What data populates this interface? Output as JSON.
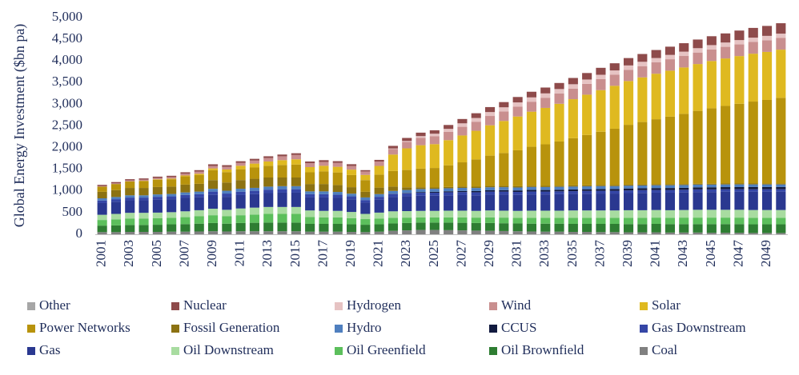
{
  "chart_data": {
    "type": "stacked_bar",
    "y_label": "Global Energy Investment ($bn pa)",
    "categories": [
      "2001",
      null,
      "2003",
      null,
      "2005",
      null,
      "2007",
      null,
      "2009",
      null,
      "2011",
      null,
      "2013",
      null,
      "2015",
      null,
      "2017",
      null,
      "2019",
      null,
      "2021",
      null,
      "2023",
      null,
      "2025",
      null,
      "2027",
      null,
      "2029",
      null,
      "2031",
      null,
      "2033",
      null,
      "2035",
      null,
      "2037",
      null,
      "2039",
      null,
      "2041",
      null,
      "2043",
      null,
      "2045",
      null,
      "2047",
      null,
      "2049",
      null
    ],
    "ylim": [
      0,
      5000
    ],
    "yticks": [
      0,
      500,
      {
        "value": 1000,
        "label": "1,000"
      },
      {
        "value": 1500,
        "label": "1,500"
      },
      {
        "value": 2000,
        "label": "2,000"
      },
      {
        "value": 2500,
        "label": "2,500"
      },
      {
        "value": 3000,
        "label": "3,000"
      },
      {
        "value": 3500,
        "label": "3,500"
      },
      {
        "value": 4000,
        "label": "4,000"
      },
      {
        "value": 4500,
        "label": "4,500"
      },
      {
        "value": 5000,
        "label": "5,000"
      }
    ],
    "grid": false,
    "legend_position": "bottom",
    "series": [
      {
        "name": "Other",
        "color": "#a6a6a6",
        "values": [
          0,
          0,
          0,
          0,
          0,
          0,
          0,
          0,
          0,
          0,
          0,
          0,
          0,
          0,
          0,
          0,
          0,
          0,
          0,
          0,
          0,
          0,
          0,
          0,
          0,
          0,
          0,
          0,
          0,
          0,
          0,
          0,
          0,
          0,
          0,
          0,
          0,
          0,
          0,
          0,
          0,
          0,
          0,
          0,
          0,
          0,
          0,
          0,
          0,
          0
        ]
      },
      {
        "name": "Nuclear",
        "color": "#8e4b4b",
        "values": [
          30,
          30,
          30,
          30,
          30,
          30,
          35,
          35,
          40,
          40,
          40,
          40,
          40,
          40,
          40,
          40,
          40,
          40,
          40,
          30,
          40,
          60,
          70,
          80,
          80,
          90,
          100,
          110,
          115,
          120,
          125,
          130,
          135,
          140,
          145,
          150,
          160,
          165,
          170,
          180,
          185,
          190,
          195,
          200,
          205,
          210,
          220,
          225,
          230,
          240
        ]
      },
      {
        "name": "Hydrogen",
        "color": "#e6c3c3",
        "values": [
          0,
          0,
          0,
          0,
          0,
          0,
          0,
          0,
          0,
          0,
          0,
          0,
          0,
          0,
          0,
          0,
          0,
          0,
          0,
          0,
          0,
          10,
          20,
          40,
          60,
          70,
          80,
          85,
          90,
          95,
          100,
          100,
          100,
          100,
          100,
          100,
          100,
          100,
          100,
          100,
          100,
          100,
          100,
          100,
          100,
          100,
          100,
          100,
          100,
          100
        ]
      },
      {
        "name": "Wind",
        "color": "#c98f8f",
        "values": [
          10,
          15,
          20,
          25,
          30,
          35,
          40,
          50,
          55,
          60,
          65,
          70,
          80,
          90,
          100,
          90,
          90,
          90,
          85,
          80,
          100,
          130,
          150,
          170,
          180,
          190,
          200,
          210,
          215,
          220,
          225,
          230,
          235,
          240,
          245,
          250,
          255,
          255,
          260,
          260,
          262,
          264,
          265,
          266,
          267,
          268,
          269,
          270,
          270,
          270
        ]
      },
      {
        "name": "Solar",
        "color": "#dfb920",
        "values": [
          0,
          0,
          2,
          5,
          10,
          15,
          20,
          30,
          40,
          60,
          80,
          90,
          100,
          110,
          120,
          120,
          130,
          130,
          125,
          120,
          200,
          380,
          500,
          540,
          550,
          580,
          620,
          660,
          700,
          740,
          780,
          810,
          840,
          870,
          900,
          930,
          960,
          990,
          1010,
          1030,
          1050,
          1060,
          1070,
          1080,
          1090,
          1095,
          1100,
          1105,
          1108,
          1110
        ]
      },
      {
        "name": "Power Networks",
        "color": "#b8930c",
        "values": [
          120,
          140,
          150,
          160,
          170,
          170,
          190,
          200,
          230,
          240,
          250,
          260,
          270,
          290,
          300,
          270,
          290,
          290,
          280,
          270,
          300,
          360,
          400,
          430,
          450,
          500,
          560,
          630,
          700,
          760,
          830,
          900,
          960,
          1020,
          1090,
          1160,
          1230,
          1300,
          1380,
          1440,
          1500,
          1560,
          1620,
          1680,
          1740,
          1790,
          1840,
          1890,
          1930,
          1980
        ]
      },
      {
        "name": "Fossil Generation",
        "color": "#8c7212",
        "values": [
          150,
          160,
          170,
          170,
          170,
          170,
          180,
          180,
          200,
          190,
          200,
          210,
          210,
          200,
          200,
          170,
          170,
          160,
          150,
          130,
          150,
          100,
          60,
          40,
          30,
          30,
          30,
          30,
          30,
          28,
          28,
          28,
          26,
          26,
          26,
          25,
          25,
          25,
          24,
          24,
          24,
          23,
          23,
          22,
          22,
          22,
          21,
          21,
          20,
          20
        ]
      },
      {
        "name": "Hydro",
        "color": "#4f7fbf",
        "values": [
          50,
          50,
          52,
          52,
          55,
          55,
          58,
          60,
          65,
          65,
          68,
          68,
          70,
          70,
          70,
          65,
          65,
          65,
          62,
          60,
          62,
          65,
          68,
          70,
          70,
          70,
          70,
          70,
          70,
          70,
          68,
          68,
          68,
          66,
          66,
          66,
          65,
          65,
          65,
          64,
          64,
          64,
          63,
          63,
          62,
          62,
          62,
          61,
          60,
          60
        ]
      },
      {
        "name": "CCUS",
        "color": "#121a3f",
        "values": [
          0,
          0,
          0,
          0,
          0,
          0,
          0,
          0,
          0,
          0,
          0,
          0,
          0,
          0,
          0,
          0,
          0,
          0,
          0,
          0,
          0,
          5,
          10,
          15,
          20,
          22,
          25,
          28,
          30,
          32,
          34,
          35,
          36,
          38,
          40,
          40,
          42,
          42,
          44,
          44,
          45,
          46,
          46,
          47,
          48,
          48,
          49,
          50,
          50,
          50
        ]
      },
      {
        "name": "Gas Downstream",
        "color": "#3546a6",
        "values": [
          60,
          60,
          62,
          62,
          65,
          65,
          68,
          70,
          75,
          75,
          78,
          78,
          80,
          80,
          80,
          75,
          75,
          72,
          70,
          60,
          65,
          70,
          70,
          70,
          70,
          70,
          70,
          70,
          70,
          70,
          68,
          68,
          66,
          66,
          65,
          65,
          64,
          64,
          63,
          63,
          62,
          62,
          62,
          61,
          61,
          60,
          60,
          60,
          60,
          60
        ]
      },
      {
        "name": "Gas",
        "color": "#2a3890",
        "values": [
          270,
          280,
          290,
          290,
          300,
          300,
          310,
          300,
          320,
          300,
          310,
          310,
          320,
          330,
          330,
          300,
          310,
          300,
          290,
          260,
          300,
          330,
          340,
          350,
          350,
          355,
          360,
          360,
          365,
          370,
          370,
          375,
          375,
          380,
          380,
          385,
          390,
          390,
          395,
          400,
          400,
          405,
          405,
          410,
          410,
          415,
          415,
          420,
          420,
          420
        ]
      },
      {
        "name": "Oil Downstream",
        "color": "#a8dca0",
        "values": [
          120,
          125,
          130,
          130,
          130,
          130,
          135,
          140,
          150,
          150,
          155,
          160,
          160,
          160,
          160,
          150,
          150,
          150,
          145,
          120,
          140,
          150,
          150,
          150,
          150,
          155,
          155,
          155,
          160,
          160,
          160,
          165,
          165,
          165,
          170,
          170,
          170,
          170,
          175,
          175,
          175,
          175,
          175,
          180,
          180,
          180,
          180,
          180,
          180,
          180
        ]
      },
      {
        "name": "Oil Greenfield",
        "color": "#5cbf5c",
        "values": [
          130,
          140,
          150,
          150,
          150,
          150,
          160,
          170,
          180,
          170,
          180,
          190,
          200,
          200,
          200,
          160,
          150,
          150,
          140,
          130,
          130,
          130,
          125,
          120,
          120,
          120,
          125,
          125,
          130,
          130,
          130,
          135,
          135,
          135,
          140,
          140,
          140,
          140,
          145,
          145,
          145,
          145,
          150,
          150,
          150,
          150,
          150,
          150,
          150,
          150
        ]
      },
      {
        "name": "Oil Brownfield",
        "color": "#2e7d32",
        "values": [
          150,
          155,
          160,
          160,
          165,
          170,
          175,
          180,
          190,
          180,
          190,
          195,
          200,
          200,
          200,
          180,
          180,
          180,
          175,
          170,
          170,
          170,
          170,
          170,
          170,
          175,
          175,
          175,
          180,
          180,
          180,
          180,
          185,
          185,
          185,
          185,
          190,
          190,
          190,
          190,
          195,
          195,
          195,
          195,
          200,
          200,
          200,
          200,
          200,
          200
        ]
      },
      {
        "name": "Coal",
        "color": "#808080",
        "values": [
          50,
          50,
          55,
          55,
          55,
          60,
          60,
          65,
          70,
          65,
          70,
          70,
          70,
          70,
          70,
          60,
          60,
          60,
          55,
          50,
          60,
          80,
          90,
          100,
          100,
          95,
          90,
          85,
          80,
          75,
          70,
          65,
          60,
          60,
          55,
          55,
          50,
          50,
          45,
          45,
          45,
          40,
          40,
          40,
          35,
          35,
          35,
          30,
          30,
          30
        ]
      }
    ]
  }
}
